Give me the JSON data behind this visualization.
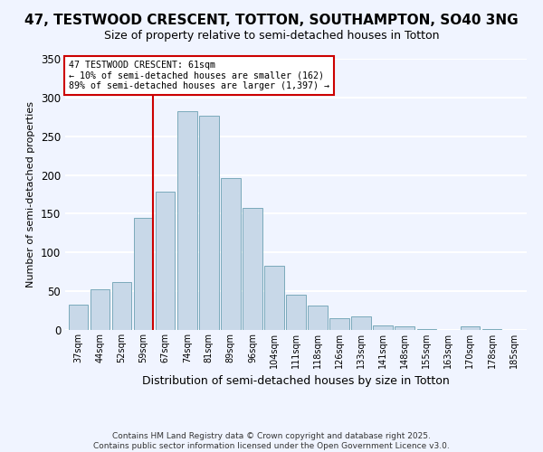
{
  "title": "47, TESTWOOD CRESCENT, TOTTON, SOUTHAMPTON, SO40 3NG",
  "subtitle": "Size of property relative to semi-detached houses in Totton",
  "xlabel": "Distribution of semi-detached houses by size in Totton",
  "ylabel": "Number of semi-detached properties",
  "footer_lines": [
    "Contains HM Land Registry data © Crown copyright and database right 2025.",
    "Contains public sector information licensed under the Open Government Licence v3.0."
  ],
  "bar_labels": [
    "37sqm",
    "44sqm",
    "52sqm",
    "59sqm",
    "67sqm",
    "74sqm",
    "81sqm",
    "89sqm",
    "96sqm",
    "104sqm",
    "111sqm",
    "118sqm",
    "126sqm",
    "133sqm",
    "141sqm",
    "148sqm",
    "155sqm",
    "163sqm",
    "170sqm",
    "178sqm",
    "185sqm"
  ],
  "bar_values": [
    33,
    53,
    62,
    145,
    178,
    282,
    277,
    196,
    158,
    83,
    45,
    31,
    15,
    18,
    6,
    5,
    1,
    0,
    5,
    1,
    0
  ],
  "bar_color": "#c8d8e8",
  "bar_edge_color": "#7aaabb",
  "vline_x_index": 3,
  "vline_color": "#cc0000",
  "annotation_title": "47 TESTWOOD CRESCENT: 61sqm",
  "annotation_line1": "← 10% of semi-detached houses are smaller (162)",
  "annotation_line2": "89% of semi-detached houses are larger (1,397) →",
  "annotation_box_color": "white",
  "annotation_box_edge": "#cc0000",
  "ylim": [
    0,
    350
  ],
  "yticks": [
    0,
    50,
    100,
    150,
    200,
    250,
    300,
    350
  ],
  "background_color": "#f0f4ff",
  "grid_color": "white",
  "title_fontsize": 11,
  "subtitle_fontsize": 9
}
